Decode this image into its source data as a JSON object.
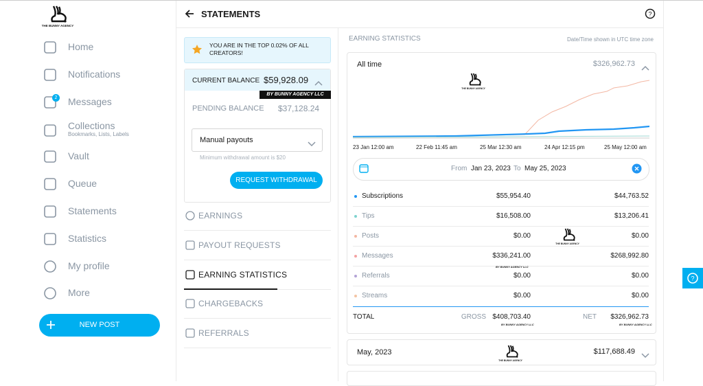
{
  "sidebar": {
    "brand": "THE BUNNY AGENCY",
    "nav": [
      "Home",
      "Notifications",
      "Messages",
      "Collections",
      "Vault",
      "Queue",
      "Statements",
      "Statistics",
      "My profile",
      "More"
    ],
    "collections_sub": "Bookmarks, Lists, Labels",
    "messages_badge": "2",
    "new_post": "NEW POST"
  },
  "header": {
    "title": "STATEMENTS"
  },
  "left_panel": {
    "banner": "YOU ARE IN THE TOP 0.02% OF ALL CREATORS!",
    "current_balance_label": "CURRENT BALANCE",
    "current_balance": "$59,928.09",
    "watermark": "BY BUNNY AGENCY LLC",
    "pending_label": "PENDING BALANCE",
    "pending_balance": "$37,128.24",
    "payout_select": "Manual payouts",
    "min_note": "Minimum withdrawal amount is $20",
    "withdraw": "REQUEST WITHDRAWAL",
    "tabs": [
      "EARNINGS",
      "PAYOUT REQUESTS",
      "EARNING STATISTICS",
      "CHARGEBACKS",
      "REFERRALS"
    ]
  },
  "stats": {
    "heading": "EARNING STATISTICS",
    "tz_note": "Date/Time shown in UTC time zone",
    "period": "All time",
    "period_total": "$326,962.73",
    "x_labels": [
      "23 Jan 12:00 am",
      "22 Feb 11:45 am",
      "25 Mar 12:30 am",
      "24 Apr 12:15 pm",
      "25 May 12:00 am"
    ],
    "from_label": "From",
    "from": "Jan 23, 2023",
    "to_label": "To",
    "to": "May 25, 2023",
    "rows": [
      [
        "Subscriptions",
        "$55,954.40",
        "$44,763.52"
      ],
      [
        "Tips",
        "$16,508.00",
        "$13,206.41"
      ],
      [
        "Posts",
        "$0.00",
        "$0.00"
      ],
      [
        "Messages",
        "$336,241.00",
        "$268,992.80"
      ],
      [
        "Referrals",
        "$0.00",
        "$0.00"
      ],
      [
        "Streams",
        "$0.00",
        "$0.00"
      ]
    ],
    "total_label": "TOTAL",
    "gross_label": "GROSS",
    "gross": "$408,703.40",
    "net_label": "NET",
    "net": "$326,962.73",
    "month": "May, 2023",
    "month_total": "$117,688.49"
  }
}
